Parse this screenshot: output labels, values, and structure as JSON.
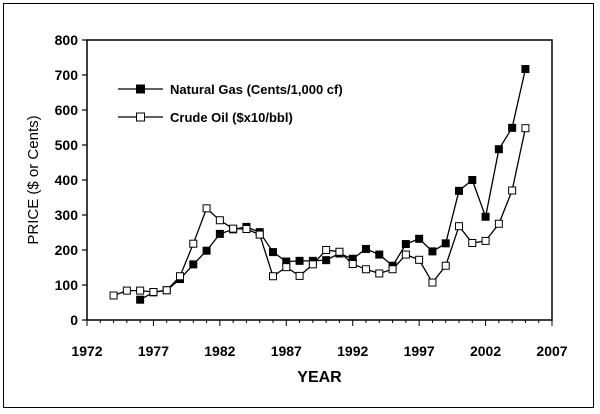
{
  "chart_data": {
    "type": "line",
    "xlabel": "YEAR",
    "ylabel": "PRICE ($ or Cents)",
    "xlim": [
      1972,
      2007
    ],
    "ylim": [
      0,
      800
    ],
    "xticks": [
      "1972",
      "1977",
      "1982",
      "1987",
      "1992",
      "1997",
      "2002",
      "2007"
    ],
    "yticks": [
      "0",
      "100",
      "200",
      "300",
      "400",
      "500",
      "600",
      "700",
      "800"
    ],
    "legend_position": "top-left",
    "grid": false,
    "series": [
      {
        "name": "Natural Gas (Cents/1,000 cf)",
        "marker": "filled-square",
        "color": "#000000",
        "points": [
          [
            1976,
            58
          ],
          [
            1977,
            79
          ],
          [
            1978,
            85
          ],
          [
            1979,
            117
          ],
          [
            1980,
            159
          ],
          [
            1981,
            198
          ],
          [
            1982,
            246
          ],
          [
            1983,
            259
          ],
          [
            1984,
            266
          ],
          [
            1985,
            251
          ],
          [
            1986,
            194
          ],
          [
            1987,
            167
          ],
          [
            1988,
            169
          ],
          [
            1989,
            169
          ],
          [
            1990,
            171
          ],
          [
            1991,
            190
          ],
          [
            1992,
            175
          ],
          [
            1993,
            203
          ],
          [
            1994,
            187
          ],
          [
            1995,
            155
          ],
          [
            1996,
            217
          ],
          [
            1997,
            232
          ],
          [
            1998,
            196
          ],
          [
            1999,
            219
          ],
          [
            2000,
            369
          ],
          [
            2001,
            400
          ],
          [
            2002,
            295
          ],
          [
            2003,
            488
          ],
          [
            2004,
            549
          ],
          [
            2005,
            717
          ]
        ]
      },
      {
        "name": "Crude Oil ($x10/bbl)",
        "marker": "open-square",
        "color": "#000000",
        "points": [
          [
            1974,
            70
          ],
          [
            1975,
            84
          ],
          [
            1976,
            84
          ],
          [
            1977,
            80
          ],
          [
            1978,
            85
          ],
          [
            1979,
            125
          ],
          [
            1980,
            218
          ],
          [
            1981,
            319
          ],
          [
            1982,
            285
          ],
          [
            1983,
            261
          ],
          [
            1984,
            260
          ],
          [
            1985,
            244
          ],
          [
            1986,
            125
          ],
          [
            1987,
            151
          ],
          [
            1988,
            126
          ],
          [
            1989,
            159
          ],
          [
            1990,
            200
          ],
          [
            1991,
            195
          ],
          [
            1992,
            160
          ],
          [
            1993,
            145
          ],
          [
            1994,
            133
          ],
          [
            1995,
            145
          ],
          [
            1996,
            187
          ],
          [
            1997,
            172
          ],
          [
            1998,
            107
          ],
          [
            1999,
            155
          ],
          [
            2000,
            268
          ],
          [
            2001,
            220
          ],
          [
            2002,
            226
          ],
          [
            2003,
            275
          ],
          [
            2004,
            370
          ],
          [
            2005,
            548
          ]
        ]
      }
    ]
  }
}
